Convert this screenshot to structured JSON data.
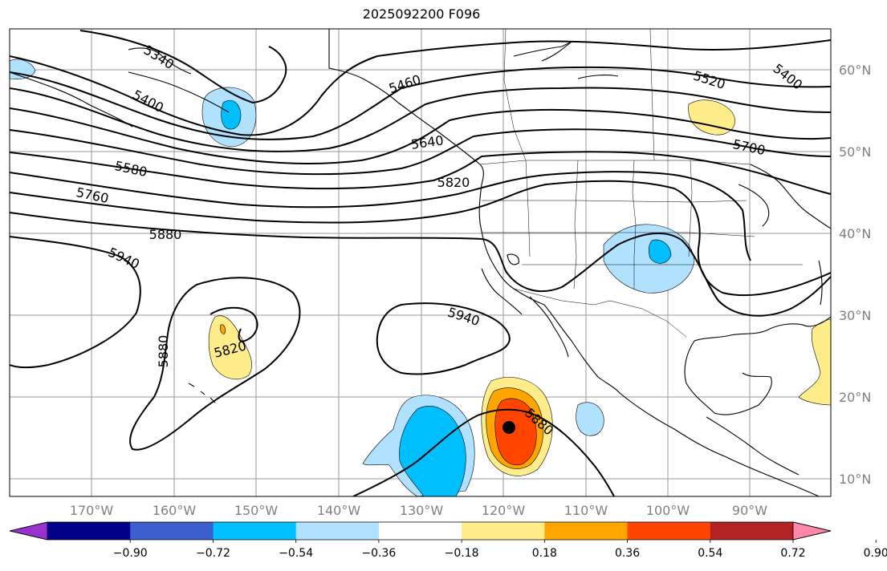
{
  "title": "2025092200 F096",
  "lat_labels": [
    "60°N",
    "50°N",
    "40°N",
    "30°N",
    "20°N",
    "10°N"
  ],
  "lon_labels": [
    "170°W",
    "160°W",
    "150°W",
    "140°W",
    "130°W",
    "120°W",
    "110°W",
    "100°W",
    "90°W"
  ],
  "contour_labels": [
    "5340",
    "5400",
    "5460",
    "5520",
    "5400",
    "5580",
    "5640",
    "5700",
    "5760",
    "5820",
    "5880",
    "5940",
    "5880",
    "5820",
    "5940",
    "5880"
  ],
  "colorbar": {
    "colors": [
      "#9932CC",
      "#00008B",
      "#3A5FCD",
      "#00BFFF",
      "#B0E2FF",
      "#FFFFFF",
      "#FFEC8B",
      "#FFA500",
      "#FF4500",
      "#B22222",
      "#FF88AA"
    ],
    "tick_labels": [
      "−0.90",
      "−0.72",
      "−0.54",
      "−0.36",
      "−0.18",
      "0.18",
      "0.36",
      "0.54",
      "0.72",
      "0.90"
    ]
  },
  "anomaly_colors": {
    "light_blue": "#B0E2FF",
    "deep_sky_blue": "#00BFFF",
    "light_yellow": "#FFEC8B",
    "orange": "#FFA500",
    "orange_red": "#FF4500"
  }
}
